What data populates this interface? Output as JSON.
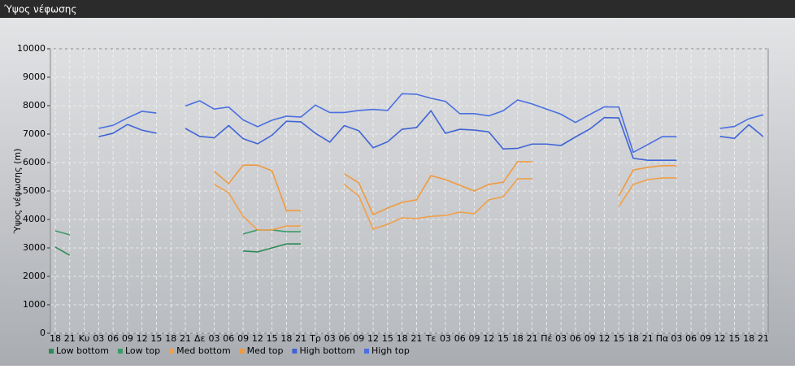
{
  "window_title": "Ύψος νέφωσης",
  "chart_data": {
    "type": "line",
    "y_label": "Ύψος νέφωσης (m)",
    "categories": [
      "18",
      "21",
      "Κυ",
      "03",
      "06",
      "09",
      "12",
      "15",
      "18",
      "21",
      "Δε",
      "03",
      "06",
      "09",
      "12",
      "15",
      "18",
      "21",
      "Τρ",
      "03",
      "06",
      "09",
      "12",
      "15",
      "18",
      "21",
      "Τε",
      "03",
      "06",
      "09",
      "12",
      "15",
      "18",
      "21",
      "Πέ",
      "03",
      "06",
      "09",
      "12",
      "15",
      "18",
      "21",
      "Πα",
      "03",
      "06",
      "09",
      "12",
      "15",
      "18",
      "21"
    ],
    "ylim": [
      0,
      10000
    ],
    "yticks": [
      0,
      1000,
      2000,
      3000,
      4000,
      5000,
      6000,
      7000,
      8000,
      9000,
      10000
    ],
    "grid": true,
    "legend": "bottom",
    "series": [
      {
        "name": "Low bottom",
        "color": "#2e8b57",
        "values": [
          3030,
          2740,
          null,
          null,
          null,
          null,
          null,
          null,
          null,
          null,
          null,
          null,
          null,
          2890,
          2860,
          3000,
          3140,
          3140,
          null,
          null,
          null,
          null,
          null,
          null,
          null,
          null,
          null,
          null,
          null,
          null,
          null,
          null,
          null,
          null,
          null,
          null,
          null,
          null,
          null,
          null,
          null,
          null,
          null,
          null,
          null,
          null,
          null,
          null,
          null,
          null
        ]
      },
      {
        "name": "Low top",
        "color": "#3a9a6a",
        "values": [
          3600,
          3460,
          null,
          null,
          null,
          null,
          null,
          null,
          null,
          null,
          null,
          null,
          null,
          3490,
          3630,
          3630,
          3570,
          3570,
          null,
          null,
          null,
          null,
          null,
          null,
          null,
          null,
          null,
          null,
          null,
          null,
          null,
          null,
          null,
          null,
          null,
          null,
          null,
          null,
          null,
          null,
          null,
          null,
          null,
          null,
          null,
          null,
          null,
          null,
          null,
          null
        ]
      },
      {
        "name": "Med bottom",
        "color": "#f0a048",
        "values": [
          null,
          null,
          null,
          null,
          null,
          null,
          null,
          null,
          null,
          null,
          null,
          5230,
          4940,
          4110,
          3630,
          3630,
          3770,
          3770,
          null,
          null,
          5230,
          4830,
          3660,
          3830,
          4060,
          4030,
          4110,
          4140,
          4260,
          4200,
          4690,
          4800,
          5430,
          5430,
          null,
          null,
          null,
          null,
          null,
          4460,
          5230,
          5400,
          5460,
          5460,
          null,
          null,
          null,
          null,
          null,
          null
        ]
      },
      {
        "name": "Med top",
        "color": "#f09a40",
        "values": [
          null,
          null,
          null,
          null,
          null,
          null,
          null,
          null,
          null,
          null,
          null,
          5690,
          5260,
          5910,
          5910,
          5710,
          4310,
          4310,
          null,
          null,
          5600,
          5290,
          4170,
          4400,
          4600,
          4690,
          5540,
          5400,
          5200,
          5000,
          5230,
          5310,
          6030,
          6030,
          null,
          null,
          null,
          null,
          null,
          4830,
          5740,
          5830,
          5890,
          5890,
          null,
          null,
          null,
          null,
          null,
          null
        ]
      },
      {
        "name": "High bottom",
        "color": "#3f64d6",
        "values": [
          null,
          null,
          null,
          6910,
          7030,
          7340,
          7140,
          7030,
          null,
          7200,
          6920,
          6870,
          7300,
          6840,
          6660,
          6960,
          7450,
          7430,
          7030,
          6720,
          7300,
          7120,
          6520,
          6730,
          7170,
          7230,
          7820,
          7030,
          7170,
          7140,
          7080,
          6480,
          6500,
          6650,
          6650,
          6600,
          6900,
          7180,
          7580,
          7570,
          6150,
          6080,
          6080,
          6080,
          null,
          null,
          6920,
          6850,
          7330,
          6910
        ]
      },
      {
        "name": "High top",
        "color": "#4a6fe0",
        "values": [
          null,
          null,
          null,
          7200,
          7310,
          7570,
          7800,
          7740,
          null,
          7990,
          8170,
          7880,
          7950,
          7500,
          7260,
          7490,
          7630,
          7600,
          8020,
          7760,
          7760,
          7830,
          7870,
          7830,
          8420,
          8400,
          8260,
          8150,
          7720,
          7720,
          7640,
          7820,
          8200,
          8060,
          7880,
          7700,
          7410,
          7690,
          7960,
          7950,
          6360,
          6630,
          6910,
          6910,
          null,
          null,
          7200,
          7270,
          7540,
          7680
        ]
      }
    ]
  }
}
